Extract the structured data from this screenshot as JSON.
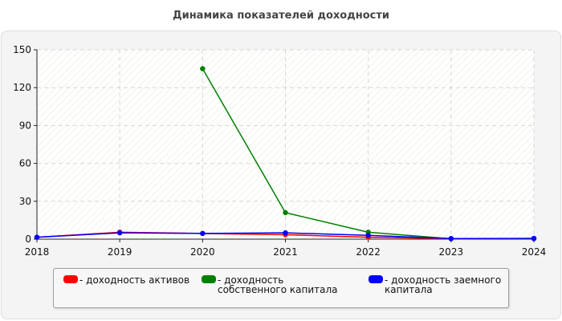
{
  "chart_data": {
    "type": "line",
    "title": "Динамика показателей доходности",
    "x": [
      "2018",
      "2019",
      "2020",
      "2021",
      "2022",
      "2023",
      "2024"
    ],
    "ylim": [
      0,
      150
    ],
    "yticks": [
      "0",
      "30",
      "60",
      "90",
      "120",
      "150"
    ],
    "grid": true,
    "legend_position": "bottom",
    "series": [
      {
        "name": "- доходность активов",
        "color": "#ff0000",
        "values": [
          1.5,
          5.5,
          4.5,
          3.5,
          1.5,
          0.3,
          0.5
        ]
      },
      {
        "name": "- доходность собственного капитала",
        "color": "#008000",
        "values": [
          null,
          null,
          135,
          21,
          5.5,
          0.3,
          0.5
        ]
      },
      {
        "name": "- доходность заемного капитала",
        "color": "#0000ff",
        "values": [
          1.5,
          5.0,
          4.5,
          5.0,
          3.0,
          0.5,
          0.6
        ]
      }
    ]
  }
}
